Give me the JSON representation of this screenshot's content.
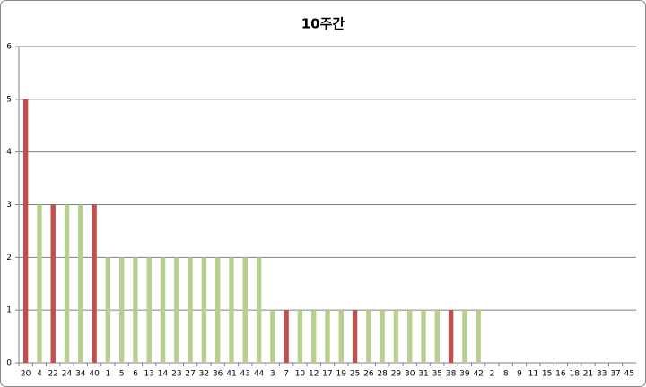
{
  "chart_data": {
    "type": "bar",
    "title": "10주간",
    "categories": [
      "20",
      "4",
      "22",
      "24",
      "34",
      "40",
      "1",
      "5",
      "6",
      "13",
      "14",
      "23",
      "27",
      "32",
      "36",
      "41",
      "43",
      "44",
      "3",
      "7",
      "10",
      "12",
      "17",
      "19",
      "25",
      "26",
      "28",
      "29",
      "30",
      "31",
      "35",
      "38",
      "39",
      "42",
      "2",
      "8",
      "9",
      "11",
      "15",
      "16",
      "18",
      "21",
      "33",
      "37",
      "45"
    ],
    "values": [
      5,
      3,
      3,
      3,
      3,
      3,
      2,
      2,
      2,
      2,
      2,
      2,
      2,
      2,
      2,
      2,
      2,
      2,
      1,
      1,
      1,
      1,
      1,
      1,
      1,
      1,
      1,
      1,
      1,
      1,
      1,
      1,
      1,
      1,
      0,
      0,
      0,
      0,
      0,
      0,
      0,
      0,
      0,
      0,
      0
    ],
    "colors": [
      "#c0504d",
      "#b5d08f",
      "#c0504d",
      "#b5d08f",
      "#b5d08f",
      "#c0504d",
      "#b5d08f",
      "#b5d08f",
      "#b5d08f",
      "#b5d08f",
      "#b5d08f",
      "#b5d08f",
      "#b5d08f",
      "#b5d08f",
      "#b5d08f",
      "#b5d08f",
      "#b5d08f",
      "#b5d08f",
      "#b5d08f",
      "#c0504d",
      "#b5d08f",
      "#b5d08f",
      "#b5d08f",
      "#b5d08f",
      "#c0504d",
      "#b5d08f",
      "#b5d08f",
      "#b5d08f",
      "#b5d08f",
      "#b5d08f",
      "#b5d08f",
      "#c0504d",
      "#b5d08f",
      "#b5d08f",
      "#b5d08f",
      "#b5d08f",
      "#b5d08f",
      "#b5d08f",
      "#b5d08f",
      "#b5d08f",
      "#b5d08f",
      "#b5d08f",
      "#b5d08f",
      "#b5d08f",
      "#b5d08f"
    ],
    "ylim": [
      0,
      6
    ],
    "yticks": [
      0,
      1,
      2,
      3,
      4,
      5,
      6
    ],
    "grid": true
  }
}
